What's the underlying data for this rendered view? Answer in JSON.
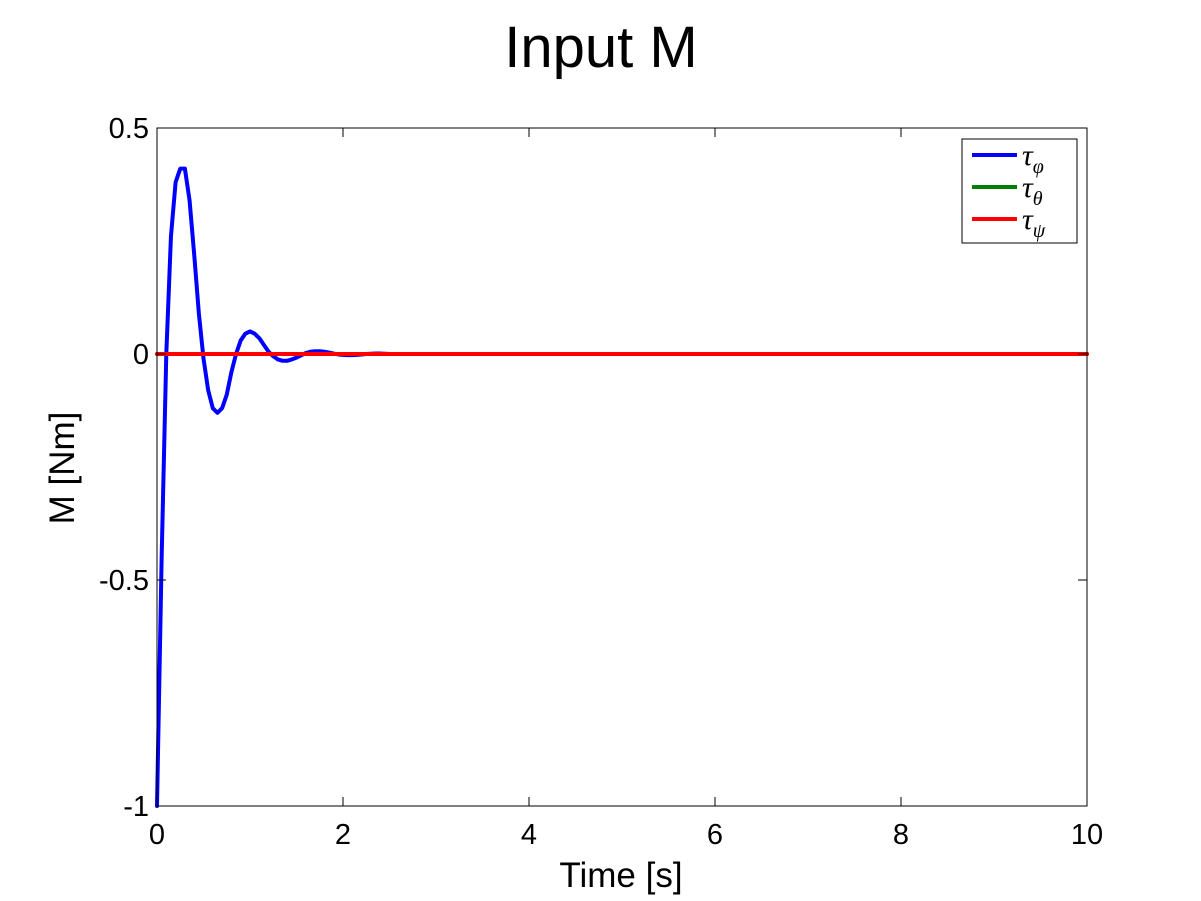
{
  "chart_data": {
    "type": "line",
    "title": "Input M",
    "xlabel": "Time [s]",
    "ylabel": "M [Nm]",
    "xlim": [
      0,
      10
    ],
    "ylim": [
      -1,
      0.5
    ],
    "xticks": [
      0,
      2,
      4,
      6,
      8,
      10
    ],
    "xtick_labels": [
      "0",
      "2",
      "4",
      "6",
      "8",
      "10"
    ],
    "yticks": [
      -1,
      -0.5,
      0,
      0.5
    ],
    "ytick_labels": [
      "-1",
      "-0.5",
      "0",
      "0.5"
    ],
    "grid": false,
    "legend_position": "top-right",
    "series": [
      {
        "name": "τφ",
        "legend_base": "τ",
        "legend_sub": "φ",
        "color": "#0000ff",
        "x": [
          0,
          0.05,
          0.1,
          0.15,
          0.2,
          0.25,
          0.3,
          0.35,
          0.4,
          0.45,
          0.5,
          0.55,
          0.6,
          0.65,
          0.7,
          0.75,
          0.8,
          0.85,
          0.9,
          0.95,
          1.0,
          1.05,
          1.1,
          1.15,
          1.2,
          1.25,
          1.3,
          1.35,
          1.4,
          1.45,
          1.5,
          1.55,
          1.6,
          1.65,
          1.7,
          1.75,
          1.8,
          1.85,
          1.9,
          1.95,
          2.0,
          2.05,
          2.1,
          2.15,
          2.2,
          2.25,
          2.3,
          2.35,
          2.4,
          2.45,
          2.5
        ],
        "y": [
          -1.0,
          -0.45,
          0.0,
          0.26,
          0.38,
          0.41,
          0.41,
          0.34,
          0.22,
          0.09,
          -0.01,
          -0.08,
          -0.12,
          -0.13,
          -0.12,
          -0.09,
          -0.04,
          0.0,
          0.03,
          0.045,
          0.05,
          0.045,
          0.035,
          0.02,
          0.005,
          -0.005,
          -0.012,
          -0.015,
          -0.015,
          -0.012,
          -0.008,
          -0.003,
          0.002,
          0.005,
          0.006,
          0.006,
          0.005,
          0.003,
          0.001,
          -0.001,
          -0.002,
          -0.0025,
          -0.0025,
          -0.002,
          -0.001,
          0.0,
          0.0005,
          0.001,
          0.001,
          0.0005,
          0.0
        ]
      },
      {
        "name": "τθ",
        "legend_base": "τ",
        "legend_sub": "θ",
        "color": "#008000",
        "x": [
          0,
          10
        ],
        "y": [
          0,
          0
        ]
      },
      {
        "name": "τψ",
        "legend_base": "τ",
        "legend_sub": "ψ",
        "color": "#ff0000",
        "x": [
          0,
          10
        ],
        "y": [
          0,
          0
        ]
      }
    ]
  }
}
